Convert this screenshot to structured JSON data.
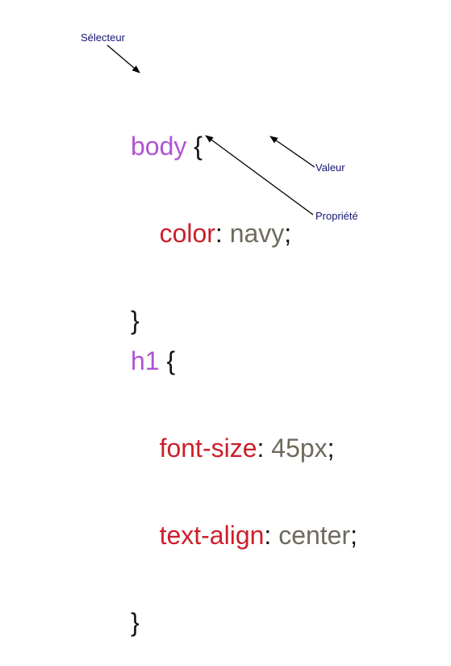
{
  "annotations": {
    "selector_label": "Sélecteur",
    "value_label": "Valeur",
    "property_label": "Propriété"
  },
  "rule1": {
    "selector": "body",
    "open_brace": "{",
    "declaration": {
      "property": "color",
      "colon": ":",
      "value": "navy",
      "semicolon": ";"
    },
    "close_brace": "}"
  },
  "rule2": {
    "selector": "h1",
    "open_brace": "{",
    "declarations": [
      {
        "property": "font-size",
        "colon": ":",
        "value": "45px",
        "semicolon": ";"
      },
      {
        "property": "text-align",
        "colon": ":",
        "value": "center",
        "semicolon": ";"
      }
    ],
    "close_brace": "}"
  },
  "colors": {
    "selector": "#b153d1",
    "property": "#cc1f2a",
    "value": "#6e6a5d",
    "annotation": "#141474",
    "arrow": "#000000"
  }
}
